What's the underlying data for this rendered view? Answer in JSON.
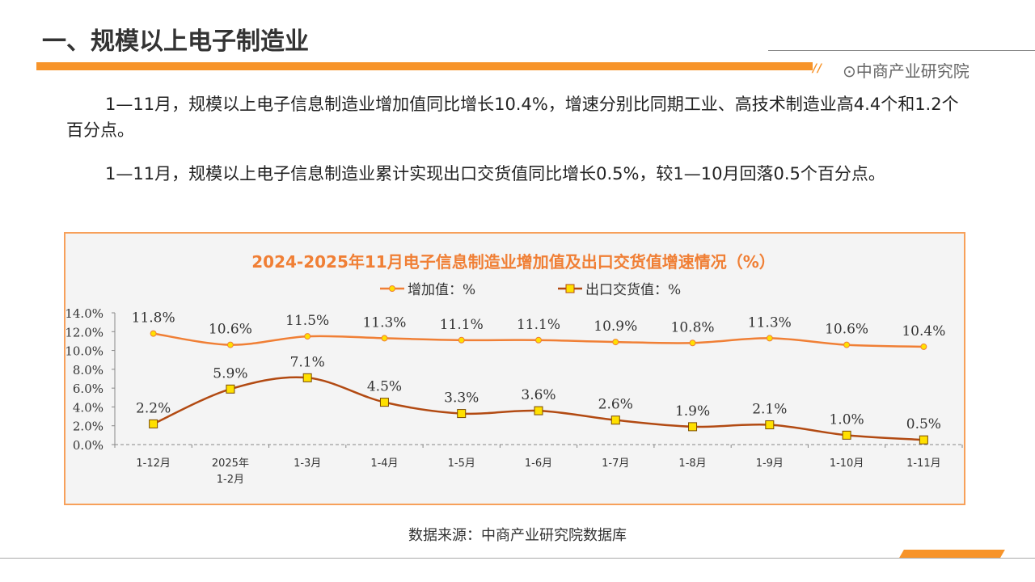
{
  "header": {
    "title": "一、规模以上电子制造业",
    "brand": "⊙中商产业研究院"
  },
  "paragraphs": [
    "1—11月，规模以上电子信息制造业增加值同比增长10.4%，增速分别比同期工业、高技术制造业高4.4个和1.2个百分点。",
    "1—11月，规模以上电子信息制造业累计实现出口交货值同比增长0.5%，较1—10月回落0.5个百分点。"
  ],
  "source": "数据来源：中商产业研究院数据库",
  "chart_data": {
    "type": "line",
    "title": "2024-2025年11月电子信息制造业增加值及出口交货值增速情况（%）",
    "categories": [
      "1-12月",
      "2025年\n1-2月",
      "1-3月",
      "1-4月",
      "1-5月",
      "1-6月",
      "1-7月",
      "1-8月",
      "1-9月",
      "1-10月",
      "1-11月"
    ],
    "series": [
      {
        "name": "增加值：%",
        "color": "#f07f35",
        "marker": "circle",
        "values": [
          11.8,
          10.6,
          11.5,
          11.3,
          11.1,
          11.1,
          10.9,
          10.8,
          11.3,
          10.6,
          10.4
        ]
      },
      {
        "name": "出口交货值：%",
        "color": "#b24a12",
        "marker": "square",
        "values": [
          2.2,
          5.9,
          7.1,
          4.5,
          3.3,
          3.6,
          2.6,
          1.9,
          2.1,
          1.0,
          0.5
        ]
      }
    ],
    "ylim": [
      0,
      14
    ],
    "yticks": [
      "0.0%",
      "2.0%",
      "4.0%",
      "6.0%",
      "8.0%",
      "10.0%",
      "12.0%",
      "14.0%"
    ],
    "legend": "top"
  }
}
